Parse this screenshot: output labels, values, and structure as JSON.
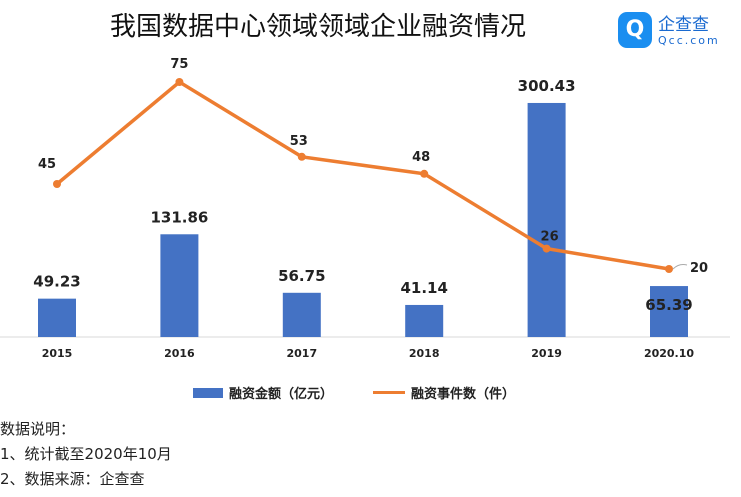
{
  "title": "我国数据中心领域领域企业融资情况",
  "logo": {
    "name": "企查查",
    "sub": "Qcc.com"
  },
  "chart_data": {
    "type": "bar+line",
    "categories": [
      "2015",
      "2016",
      "2017",
      "2018",
      "2019",
      "2020.10"
    ],
    "series": [
      {
        "name": "融资金额（亿元）",
        "type": "bar",
        "color": "#4472c4",
        "values": [
          49.23,
          131.86,
          56.75,
          41.14,
          300.43,
          65.39
        ]
      },
      {
        "name": "融资事件数（件）",
        "type": "line",
        "color": "#ed7d31",
        "values": [
          45,
          75,
          53,
          48,
          26,
          20
        ]
      }
    ],
    "grid": false,
    "legend": "bottom"
  },
  "notes": [
    "数据说明：",
    "1、统计截至2020年10月",
    "2、数据来源：企查查"
  ]
}
